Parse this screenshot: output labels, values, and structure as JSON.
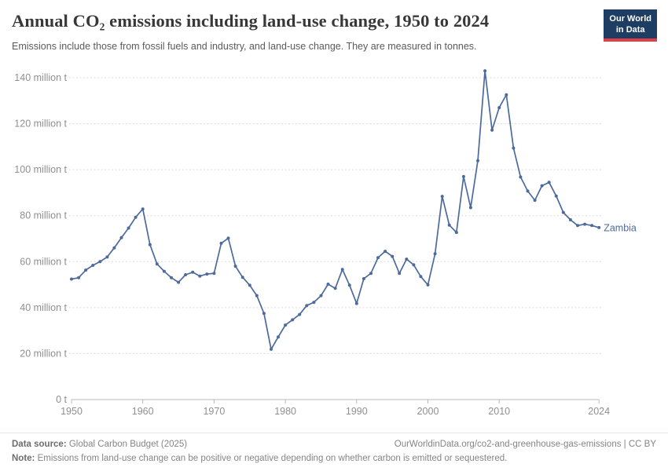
{
  "header": {
    "title": "Annual CO₂ emissions including land-use change, 1950 to 2024",
    "subtitle": "Emissions include those from fossil fuels and industry, and land-use change. They are measured in tonnes.",
    "logo": {
      "line1": "Our World",
      "line2": "in Data"
    }
  },
  "chart_data": {
    "type": "line",
    "title": "Annual CO₂ emissions including land-use change, 1950 to 2024",
    "xlabel": "",
    "ylabel": "",
    "x_ticks": [
      1950,
      1960,
      1970,
      1980,
      1990,
      2000,
      2010,
      2024
    ],
    "y_ticks": [
      0,
      20,
      40,
      60,
      80,
      100,
      120,
      140
    ],
    "y_tick_labels": [
      "0 t",
      "20 million t",
      "40 million t",
      "60 million t",
      "80 million t",
      "100 million t",
      "120 million t",
      "140 million t"
    ],
    "ylim": [
      0,
      145
    ],
    "xlim": [
      1950,
      2024
    ],
    "grid": "dashed-horizontal",
    "legend_position": "end-of-line-label",
    "series": [
      {
        "name": "Zambia",
        "unit": "million t",
        "color": "#4c6a9c",
        "x": [
          1950,
          1951,
          1952,
          1953,
          1954,
          1955,
          1956,
          1957,
          1958,
          1959,
          1960,
          1961,
          1962,
          1963,
          1964,
          1965,
          1966,
          1967,
          1968,
          1969,
          1970,
          1971,
          1972,
          1973,
          1974,
          1975,
          1976,
          1977,
          1978,
          1979,
          1980,
          1981,
          1982,
          1983,
          1984,
          1985,
          1986,
          1987,
          1988,
          1989,
          1990,
          1991,
          1992,
          1993,
          1994,
          1995,
          1996,
          1997,
          1998,
          1999,
          2000,
          2001,
          2002,
          2003,
          2004,
          2005,
          2006,
          2007,
          2008,
          2009,
          2010,
          2011,
          2012,
          2013,
          2014,
          2015,
          2016,
          2017,
          2018,
          2019,
          2020,
          2021,
          2022,
          2023,
          2024
        ],
        "values": [
          52.4,
          53.0,
          56.3,
          58.4,
          60.0,
          62.0,
          66.0,
          70.4,
          74.6,
          79.3,
          82.9,
          67.4,
          59.0,
          55.8,
          53.0,
          51.0,
          54.3,
          55.4,
          53.7,
          54.6,
          54.9,
          68.0,
          70.2,
          58.0,
          53.2,
          49.7,
          45.2,
          37.5,
          21.9,
          27.2,
          32.4,
          34.7,
          37.0,
          40.9,
          42.3,
          45.2,
          50.2,
          48.4,
          56.6,
          49.8,
          41.8,
          52.6,
          54.9,
          61.7,
          64.5,
          62.3,
          54.9,
          61.1,
          58.6,
          53.5,
          49.9,
          63.4,
          88.4,
          75.9,
          72.7,
          97.0,
          83.5,
          103.9,
          143.0,
          117.2,
          127.0,
          132.6,
          109.4,
          96.8,
          90.7,
          86.7,
          93.0,
          94.5,
          88.5,
          81.4,
          78.2,
          75.7,
          76.3,
          75.7,
          74.8
        ]
      }
    ],
    "colors": {
      "line": "#4c6a9c",
      "grid": "#dcdcdc",
      "axis": "#b8b8b8",
      "tick_label": "#8f8f8f"
    }
  },
  "footer": {
    "datasource_label": "Data source:",
    "datasource_value": " Global Carbon Budget (2025)",
    "credit": "OurWorldinData.org/co2-and-greenhouse-gas-emissions | CC BY",
    "note_label": "Note:",
    "note_value": " Emissions from land-use change can be positive or negative depending on whether carbon is emitted or sequestered."
  }
}
